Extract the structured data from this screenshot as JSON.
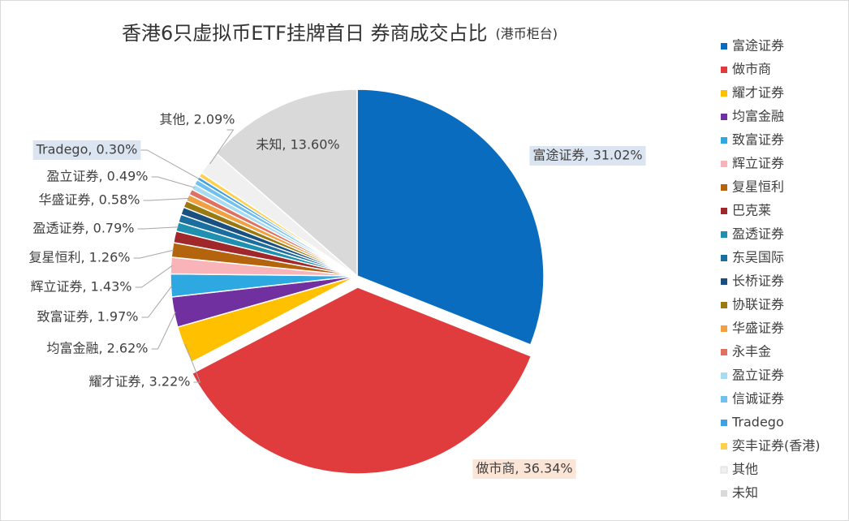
{
  "chart_data": {
    "type": "pie",
    "title": "香港6只虚拟币ETF挂牌首日 券商成交占比",
    "subtitle": "(港币柜台)",
    "categories": [
      "富途证券",
      "做市商",
      "耀才证券",
      "均富金融",
      "致富证券",
      "辉立证券",
      "复星恒利",
      "巴克莱",
      "盈透证券",
      "东吴国际",
      "长桥证券",
      "协联证券",
      "华盛证券",
      "永丰金",
      "盈立证券",
      "信诚证券",
      "Tradego",
      "奕丰证券(香港)",
      "其他",
      "未知"
    ],
    "values": [
      31.02,
      36.34,
      3.22,
      2.62,
      1.97,
      1.43,
      1.26,
      1.0,
      0.79,
      0.7,
      0.65,
      0.6,
      0.58,
      0.5,
      0.49,
      0.45,
      0.3,
      0.39,
      2.09,
      13.6
    ],
    "value_labels": [
      "富途证券, 31.02%",
      "做市商, 36.34%",
      "耀才证券, 3.22%",
      "均富金融, 2.62%",
      "致富证券, 1.97%",
      "辉立证券, 1.43%",
      "复星恒利, 1.26%",
      null,
      "盈透证券, 0.79%",
      null,
      null,
      null,
      "华盛证券, 0.58%",
      null,
      "盈立证券, 0.49%",
      null,
      "Tradego, 0.30%",
      null,
      "其他, 2.09%",
      "未知, 13.60%"
    ],
    "colors": [
      "#0a6cbf",
      "#e03c3e",
      "#ffc000",
      "#7030a0",
      "#2ea8e0",
      "#f8b4b8",
      "#b4640c",
      "#a0282a",
      "#2090b0",
      "#1a6ea0",
      "#1a5080",
      "#9a7a10",
      "#f0a040",
      "#e07060",
      "#a8dcf0",
      "#70c0f0",
      "#40a0e0",
      "#ffd050",
      "#f0f0f0",
      "#d9d9d9"
    ],
    "legend": "right"
  }
}
